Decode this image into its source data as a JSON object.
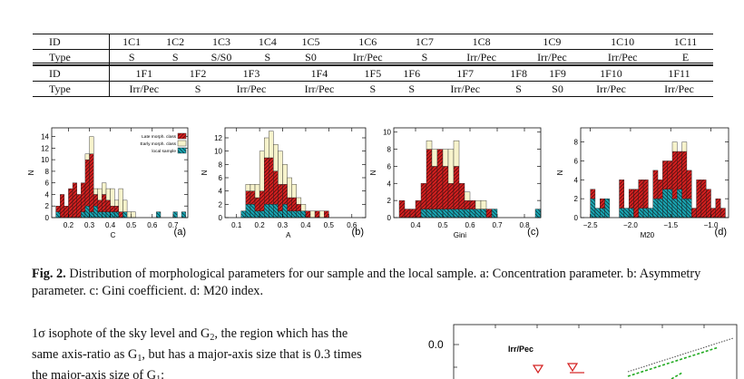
{
  "table1": {
    "id_label": "ID",
    "type_label": "Type",
    "ids": [
      "1C1",
      "1C2",
      "1C3",
      "1C4",
      "1C5",
      "1C6",
      "1C7",
      "1C8",
      "1C9",
      "1C10",
      "1C11"
    ],
    "types": [
      "S",
      "S",
      "S/S0",
      "S",
      "S0",
      "Irr/Pec",
      "S",
      "Irr/Pec",
      "Irr/Pec",
      "Irr/Pec",
      "E"
    ]
  },
  "table2": {
    "id_label": "ID",
    "type_label": "Type",
    "ids": [
      "1F1",
      "1F2",
      "1F3",
      "1F4",
      "1F5",
      "1F6",
      "1F7",
      "1F8",
      "1F9",
      "1F10",
      "1F11"
    ],
    "types": [
      "Irr/Pec",
      "S",
      "Irr/Pec",
      "Irr/Pec",
      "S",
      "S",
      "Irr/Pec",
      "S",
      "S0",
      "Irr/Pec",
      "Irr/Pec"
    ]
  },
  "figure": {
    "legend": [
      "Late morph. class",
      "Early morph. class",
      "local sample"
    ],
    "colors": {
      "late": "#d42020",
      "early": "#f7f3cc",
      "local": "#1aa7b3"
    },
    "y_axis_label": "N",
    "caption": {
      "label": "Fig. 2.",
      "text": "Distribution of morphological parameters for our sample and the local sample. a: Concentration parameter. b: Asymmetry parameter. c: Gini coefficient. d: M20 index."
    }
  },
  "chart_data": [
    {
      "type": "bar",
      "panel_label": "(a)",
      "xlabel": "C",
      "ylabel": "N",
      "x_ticks": [
        0.2,
        0.3,
        0.4,
        0.5,
        0.6,
        0.7
      ],
      "y_ticks": [
        0,
        2,
        4,
        6,
        8,
        10,
        12,
        14
      ],
      "xlim": [
        0.12,
        0.77
      ],
      "ylim": [
        0,
        15.5
      ],
      "bin_width": 0.02,
      "x": [
        0.13,
        0.15,
        0.17,
        0.19,
        0.21,
        0.23,
        0.25,
        0.27,
        0.29,
        0.31,
        0.33,
        0.35,
        0.37,
        0.39,
        0.41,
        0.43,
        0.45,
        0.47,
        0.49,
        0.51,
        0.53,
        0.55,
        0.57,
        0.59,
        0.61,
        0.63,
        0.65,
        0.67,
        0.69,
        0.71,
        0.73,
        0.75
      ],
      "series": [
        {
          "name": "local sample",
          "values": [
            0,
            1,
            0,
            0,
            0,
            0,
            0,
            1,
            2,
            1,
            2,
            1,
            1,
            1,
            1,
            1,
            0,
            1,
            0,
            0,
            0,
            0,
            0,
            0,
            0,
            1,
            0,
            0,
            0,
            1,
            0,
            1
          ]
        },
        {
          "name": "Late morph. class",
          "values": [
            0,
            1,
            4,
            2,
            5,
            6,
            4,
            5,
            8,
            10,
            2,
            2,
            3,
            2,
            1,
            1,
            1,
            0,
            0,
            0,
            0,
            0,
            0,
            0,
            0,
            0,
            0,
            0,
            0,
            0,
            0,
            0
          ]
        },
        {
          "name": "Early morph. class",
          "values": [
            0,
            0,
            0,
            0,
            0,
            0,
            0,
            0,
            1,
            3,
            1,
            2,
            2,
            2,
            3,
            1,
            4,
            2,
            1,
            1,
            0,
            0,
            0,
            0,
            0,
            0,
            0,
            0,
            0,
            0,
            0,
            0
          ]
        }
      ]
    },
    {
      "type": "bar",
      "panel_label": "(b)",
      "xlabel": "A",
      "ylabel": "N",
      "x_ticks": [
        0.1,
        0.2,
        0.3,
        0.4,
        0.5,
        0.6
      ],
      "y_ticks": [
        0,
        2,
        4,
        6,
        8,
        10,
        12
      ],
      "xlim": [
        0.05,
        0.66
      ],
      "ylim": [
        0,
        13.5
      ],
      "bin_width": 0.02,
      "x": [
        0.07,
        0.09,
        0.11,
        0.13,
        0.15,
        0.17,
        0.19,
        0.21,
        0.23,
        0.25,
        0.27,
        0.29,
        0.31,
        0.33,
        0.35,
        0.37,
        0.39,
        0.41,
        0.43,
        0.45,
        0.47,
        0.49,
        0.51,
        0.53,
        0.55,
        0.57,
        0.59,
        0.61,
        0.63,
        0.65
      ],
      "series": [
        {
          "name": "local sample",
          "values": [
            0,
            0,
            0,
            1,
            2,
            2,
            1,
            1,
            2,
            2,
            2,
            1,
            2,
            1,
            1,
            1,
            1,
            0,
            0,
            0,
            0,
            0,
            0,
            0,
            0,
            0,
            0,
            0,
            0,
            0
          ]
        },
        {
          "name": "Late morph. class",
          "values": [
            0,
            0,
            0,
            0,
            2,
            2,
            2,
            3,
            7,
            7,
            5,
            4,
            3,
            2,
            2,
            1,
            0,
            1,
            0,
            1,
            0,
            1,
            0,
            0,
            0,
            0,
            0,
            0,
            0,
            0
          ]
        },
        {
          "name": "Early morph. class",
          "values": [
            0,
            0,
            0,
            0,
            1,
            1,
            2,
            6,
            3,
            4,
            4,
            5,
            3,
            3,
            2,
            1,
            1,
            0,
            1,
            0,
            1,
            0,
            0,
            0,
            0,
            0,
            0,
            0,
            0,
            0
          ]
        }
      ]
    },
    {
      "type": "bar",
      "panel_label": "(c)",
      "xlabel": "Gini",
      "ylabel": "N",
      "x_ticks": [
        0.4,
        0.5,
        0.6,
        0.7,
        0.8
      ],
      "y_ticks": [
        0,
        2,
        4,
        6,
        8,
        10
      ],
      "xlim": [
        0.32,
        0.86
      ],
      "ylim": [
        0,
        10.5
      ],
      "bin_width": 0.02,
      "x": [
        0.33,
        0.35,
        0.37,
        0.39,
        0.41,
        0.43,
        0.45,
        0.47,
        0.49,
        0.51,
        0.53,
        0.55,
        0.57,
        0.59,
        0.61,
        0.63,
        0.65,
        0.67,
        0.69,
        0.71,
        0.73,
        0.75,
        0.77,
        0.79,
        0.81,
        0.83,
        0.85
      ],
      "series": [
        {
          "name": "local sample",
          "values": [
            0,
            0,
            0,
            0,
            0,
            1,
            1,
            1,
            1,
            1,
            1,
            1,
            1,
            1,
            1,
            1,
            1,
            0,
            1,
            0,
            0,
            0,
            0,
            0,
            0,
            0,
            1
          ]
        },
        {
          "name": "Late morph. class",
          "values": [
            0,
            2,
            1,
            1,
            2,
            3,
            7,
            5,
            7,
            5,
            3,
            5,
            3,
            1,
            1,
            0,
            0,
            1,
            0,
            0,
            0,
            0,
            0,
            0,
            0,
            0,
            0
          ]
        },
        {
          "name": "Early morph. class",
          "values": [
            0,
            0,
            0,
            0,
            0,
            0,
            1,
            2,
            0,
            2,
            4,
            3,
            0,
            1,
            0,
            1,
            1,
            0,
            0,
            0,
            0,
            0,
            0,
            0,
            0,
            0,
            0
          ]
        }
      ]
    },
    {
      "type": "bar",
      "panel_label": "(d)",
      "xlabel": "M20",
      "ylabel": "N",
      "x_ticks": [
        -2.5,
        -2.0,
        -1.5,
        -1.0
      ],
      "y_ticks": [
        0,
        2,
        4,
        6,
        8
      ],
      "xlim": [
        -2.62,
        -0.78
      ],
      "ylim": [
        0,
        9.5
      ],
      "bin_width": 0.06,
      "x": [
        -2.59,
        -2.53,
        -2.47,
        -2.41,
        -2.35,
        -2.29,
        -2.23,
        -2.17,
        -2.11,
        -2.05,
        -1.99,
        -1.93,
        -1.87,
        -1.81,
        -1.75,
        -1.69,
        -1.63,
        -1.57,
        -1.51,
        -1.45,
        -1.39,
        -1.33,
        -1.27,
        -1.21,
        -1.15,
        -1.09,
        -1.03,
        -0.97,
        -0.91,
        -0.85,
        -0.79
      ],
      "series": [
        {
          "name": "local sample",
          "values": [
            0,
            0,
            2,
            1,
            1,
            2,
            0,
            0,
            1,
            1,
            1,
            0,
            1,
            1,
            1,
            2,
            2,
            3,
            3,
            2,
            3,
            2,
            2,
            0,
            0,
            0,
            0,
            0,
            0,
            0,
            0
          ]
        },
        {
          "name": "Late morph. class",
          "values": [
            0,
            0,
            1,
            0,
            1,
            0,
            0,
            0,
            3,
            0,
            2,
            3,
            3,
            3,
            0,
            3,
            2,
            3,
            3,
            5,
            4,
            5,
            3,
            1,
            4,
            4,
            3,
            1,
            2,
            1,
            0
          ]
        },
        {
          "name": "Early morph. class",
          "values": [
            0,
            0,
            0,
            0,
            0,
            0,
            0,
            0,
            0,
            0,
            0,
            0,
            0,
            0,
            0,
            0,
            0,
            0,
            0,
            1,
            0,
            1,
            0,
            0,
            0,
            0,
            0,
            0,
            0,
            0,
            0
          ]
        }
      ]
    }
  ],
  "body_text": {
    "line1": "1σ isophote of the sky level and G",
    "sub1": "2",
    "line1b": ", the region which has the",
    "line2": "same axis-ratio as G",
    "sub2": "1",
    "line2b": ", but has a major-axis size that is 0.3 times",
    "line3": "the major-axis size of G",
    "sub3": "1",
    "line3b": ":"
  },
  "bottom_plot": {
    "y_tick_label": "0.0",
    "annotation": "Irr/Pec",
    "marker_color": "#d42020",
    "line_color": "#22aa22"
  }
}
